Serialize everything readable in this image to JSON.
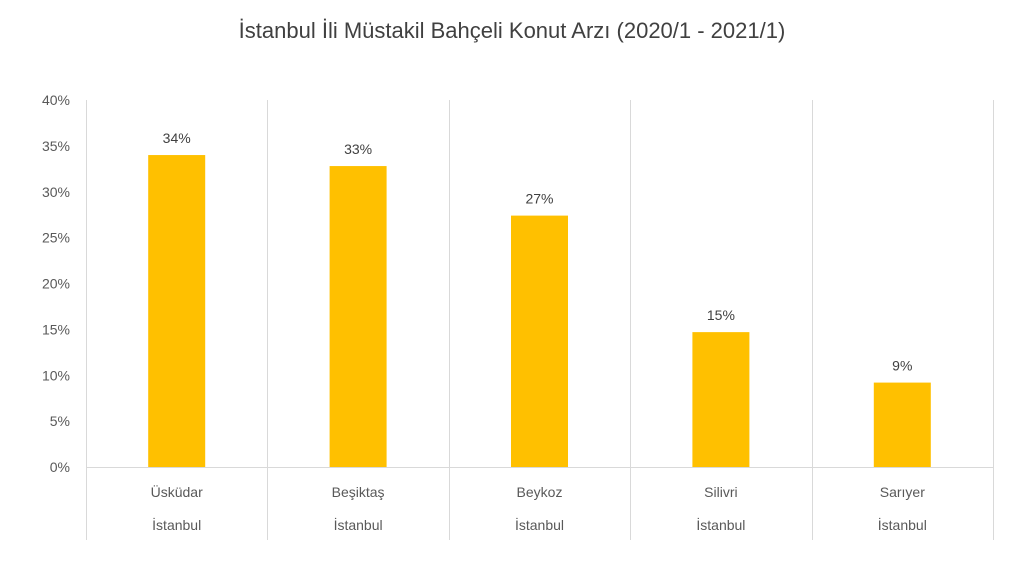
{
  "chart_data": {
    "type": "bar",
    "title": "İstanbul İli Müstakil Bahçeli Konut Arzı (2020/1 - 2021/1)",
    "categories": [
      "Üsküdar",
      "Beşiktaş",
      "Beykoz",
      "Silivri",
      "Sarıyer"
    ],
    "group_labels": [
      "İstanbul",
      "İstanbul",
      "İstanbul",
      "İstanbul",
      "İstanbul"
    ],
    "values": [
      34,
      32.8,
      27.4,
      14.7,
      9.2
    ],
    "data_labels": [
      "34%",
      "33%",
      "27%",
      "15%",
      "9%"
    ],
    "y_tick_labels": [
      "0%",
      "5%",
      "10%",
      "15%",
      "20%",
      "25%",
      "30%",
      "35%",
      "40%"
    ],
    "ylim": [
      0,
      40
    ],
    "y_unit": "%",
    "grid": "vertical",
    "bar_color": "#FFC000",
    "gridline_color": "#D9D9D9",
    "xlabel": "",
    "ylabel": ""
  }
}
